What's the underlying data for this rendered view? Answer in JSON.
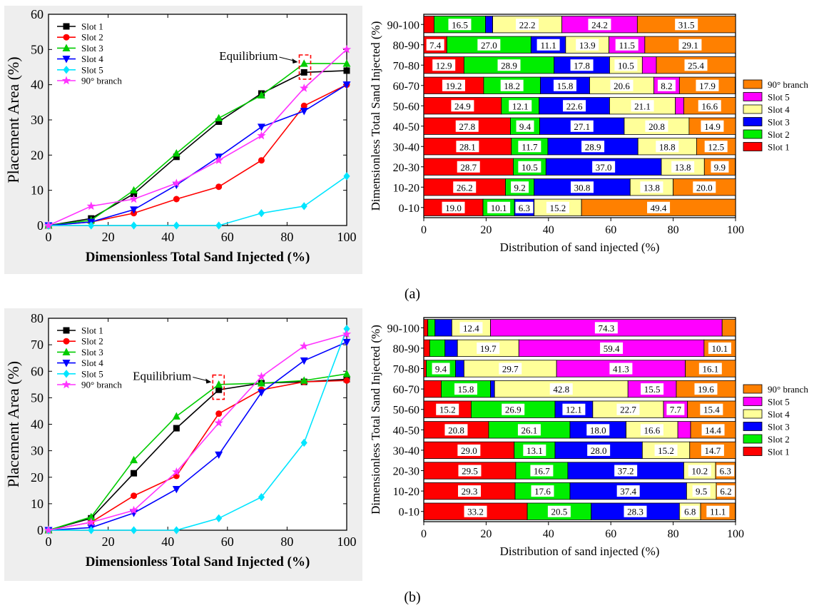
{
  "figure": {
    "panel_a_label": "(a)",
    "panel_b_label": "(b)"
  },
  "chart_data": [
    {
      "id": "a-line",
      "type": "line",
      "xlabel": "Dimensionless Total Sand Injected (%)",
      "ylabel": "Placement Area (%)",
      "xlim": [
        0,
        100
      ],
      "ylim": [
        0,
        60
      ],
      "xticks": [
        0,
        20,
        40,
        60,
        80,
        100
      ],
      "yticks": [
        0,
        10,
        20,
        30,
        40,
        50,
        60
      ],
      "annotation": "Equilibrium",
      "annotation_point": [
        86,
        45
      ],
      "legend_position": "top-left",
      "x": [
        0,
        14.3,
        28.6,
        42.9,
        57.1,
        71.4,
        85.7,
        100
      ],
      "series": [
        {
          "name": "Slot 1",
          "color": "#000000",
          "marker": "square",
          "values": [
            0,
            2,
            9,
            19.5,
            29.5,
            37.5,
            43.5,
            44
          ]
        },
        {
          "name": "Slot 2",
          "color": "#ff0000",
          "marker": "circle",
          "values": [
            0,
            1,
            3.5,
            7.5,
            11,
            18.5,
            34,
            40
          ]
        },
        {
          "name": "Slot 3",
          "color": "#00cc00",
          "marker": "triangle-up",
          "values": [
            0,
            1.5,
            10,
            20.5,
            30.5,
            37,
            46,
            46
          ]
        },
        {
          "name": "Slot 4",
          "color": "#0000ff",
          "marker": "triangle-down",
          "values": [
            0,
            1,
            4.5,
            11.5,
            19.5,
            28,
            32.5,
            40
          ]
        },
        {
          "name": "Slot 5",
          "color": "#00e5ff",
          "marker": "diamond",
          "values": [
            0,
            0,
            0,
            0,
            0,
            3.5,
            5.5,
            14
          ]
        },
        {
          "name": "90° branch",
          "color": "#ff33ff",
          "marker": "star",
          "values": [
            0,
            5.5,
            7.5,
            12,
            18.5,
            25.5,
            39,
            50
          ]
        }
      ]
    },
    {
      "id": "a-bar",
      "type": "bar",
      "orientation": "horizontal-stacked",
      "xlabel": "Distribution of sand injected (%)",
      "ylabel": "Dimensionless Total Sand Injected (%)",
      "xlim": [
        0,
        100
      ],
      "xticks": [
        0,
        20,
        40,
        60,
        80,
        100
      ],
      "legend_position": "right",
      "categories": [
        "0-10",
        "10-20",
        "20-30",
        "30-40",
        "40-50",
        "50-60",
        "60-70",
        "70-80",
        "80-90",
        "90-100"
      ],
      "series": [
        {
          "name": "Slot 1",
          "color": "#ff0000",
          "values": [
            19.0,
            26.2,
            28.7,
            28.1,
            27.8,
            24.9,
            19.2,
            12.9,
            7.4,
            3.3
          ]
        },
        {
          "name": "Slot 2",
          "color": "#00ee00",
          "values": [
            10.1,
            9.2,
            10.5,
            11.7,
            9.4,
            12.1,
            18.2,
            28.9,
            27.0,
            16.5
          ]
        },
        {
          "name": "Slot 3",
          "color": "#0000ff",
          "values": [
            6.3,
            30.8,
            37.0,
            28.9,
            27.1,
            22.6,
            15.8,
            17.8,
            11.1,
            2.3
          ]
        },
        {
          "name": "Slot 4",
          "color": "#ffff99",
          "values": [
            15.2,
            13.8,
            13.8,
            18.8,
            20.8,
            21.1,
            20.6,
            10.5,
            13.9,
            22.2
          ]
        },
        {
          "name": "Slot 5",
          "color": "#ff00ff",
          "values": [
            0,
            0,
            0,
            0,
            0,
            2.7,
            8.2,
            4.5,
            11.5,
            24.2
          ]
        },
        {
          "name": "90° branch",
          "color": "#ff8000",
          "values": [
            49.4,
            20.0,
            9.9,
            12.5,
            14.9,
            16.6,
            17.9,
            25.4,
            29.1,
            31.5
          ]
        }
      ],
      "labels": {
        "Slot 1": [
          "19.0",
          "26.2",
          "28.7",
          "28.1",
          "27.8",
          "24.9",
          "19.2",
          "12.9",
          "7.4",
          ""
        ],
        "Slot 2": [
          "10.1",
          "9.2",
          "10.5",
          "11.7",
          "9.4",
          "12.1",
          "18.2",
          "28.9",
          "27.0",
          "16.5"
        ],
        "Slot 3": [
          "6.3",
          "30.8",
          "37.0",
          "28.9",
          "27.1",
          "22.6",
          "15.8",
          "17.8",
          "11.1",
          ""
        ],
        "Slot 4": [
          "15.2",
          "13.8",
          "13.8",
          "18.8",
          "20.8",
          "21.1",
          "20.6",
          "10.5",
          "13.9",
          "22.2"
        ],
        "Slot 5": [
          "",
          "",
          "",
          "",
          "",
          "",
          "8.2",
          "",
          "11.5",
          "24.2"
        ],
        "90° branch": [
          "49.4",
          "20.0",
          "9.9",
          "12.5",
          "14.9",
          "16.6",
          "17.9",
          "25.4",
          "29.1",
          "31.5"
        ]
      }
    },
    {
      "id": "b-line",
      "type": "line",
      "xlabel": "Dimensionless Total Sand Injected (%)",
      "ylabel": "Placement Area (%)",
      "xlim": [
        0,
        100
      ],
      "ylim": [
        0,
        80
      ],
      "xticks": [
        0,
        20,
        40,
        60,
        80,
        100
      ],
      "yticks": [
        0,
        10,
        20,
        30,
        40,
        50,
        60,
        70,
        80
      ],
      "annotation": "Equilibrium",
      "annotation_point": [
        57,
        54
      ],
      "legend_position": "top-left",
      "x": [
        0,
        14.3,
        28.6,
        42.9,
        57.1,
        71.4,
        85.7,
        100
      ],
      "series": [
        {
          "name": "Slot 1",
          "color": "#000000",
          "marker": "square",
          "values": [
            0,
            4.5,
            21.5,
            38.5,
            53,
            55.5,
            56,
            57
          ]
        },
        {
          "name": "Slot 2",
          "color": "#ff0000",
          "marker": "circle",
          "values": [
            0,
            3,
            13,
            20.5,
            44,
            53,
            56,
            56.5
          ]
        },
        {
          "name": "Slot 3",
          "color": "#00cc00",
          "marker": "triangle-up",
          "values": [
            0,
            5,
            26.5,
            43,
            55,
            55.5,
            56.5,
            59
          ]
        },
        {
          "name": "Slot 4",
          "color": "#0000ff",
          "marker": "triangle-down",
          "values": [
            0,
            1,
            6.5,
            15.5,
            28.5,
            52,
            64,
            71
          ]
        },
        {
          "name": "Slot 5",
          "color": "#00e5ff",
          "marker": "diamond",
          "values": [
            0,
            0,
            0,
            0,
            4.5,
            12.5,
            33,
            76
          ]
        },
        {
          "name": "90° branch",
          "color": "#ff33ff",
          "marker": "star",
          "values": [
            0,
            3,
            7.5,
            22,
            40.5,
            58,
            69.5,
            74
          ]
        }
      ]
    },
    {
      "id": "b-bar",
      "type": "bar",
      "orientation": "horizontal-stacked",
      "xlabel": "Distribution of sand injected (%)",
      "ylabel": "Dimensionless Total Sand Injected (%)",
      "xlim": [
        0,
        100
      ],
      "xticks": [
        0,
        20,
        40,
        60,
        80,
        100
      ],
      "legend_position": "right",
      "categories": [
        "0-10",
        "10-20",
        "20-30",
        "30-40",
        "40-50",
        "50-60",
        "60-70",
        "70-80",
        "80-90",
        "90-100"
      ],
      "series": [
        {
          "name": "Slot 1",
          "color": "#ff0000",
          "values": [
            33.2,
            29.3,
            29.5,
            29.0,
            20.8,
            15.2,
            5.6,
            0.8,
            1.9,
            1.3
          ]
        },
        {
          "name": "Slot 2",
          "color": "#00ee00",
          "values": [
            20.5,
            17.6,
            16.7,
            13.1,
            26.1,
            26.9,
            15.8,
            9.4,
            4.9,
            2.3
          ]
        },
        {
          "name": "Slot 3",
          "color": "#0000ff",
          "values": [
            28.3,
            37.4,
            37.2,
            28.0,
            18.0,
            12.1,
            1.3,
            2.7,
            4.0,
            5.4
          ]
        },
        {
          "name": "Slot 4",
          "color": "#ffff99",
          "values": [
            6.8,
            9.5,
            10.2,
            15.2,
            16.6,
            22.7,
            42.8,
            29.7,
            19.7,
            12.4
          ]
        },
        {
          "name": "Slot 5",
          "color": "#ff00ff",
          "values": [
            0,
            0,
            0,
            0,
            4.1,
            7.7,
            15.5,
            41.3,
            59.4,
            74.3
          ]
        },
        {
          "name": "90° branch",
          "color": "#ff8000",
          "values": [
            11.1,
            6.2,
            6.3,
            14.7,
            14.4,
            15.4,
            19.6,
            16.1,
            10.1,
            4.3
          ]
        }
      ],
      "labels": {
        "Slot 1": [
          "33.2",
          "29.3",
          "29.5",
          "29.0",
          "20.8",
          "15.2",
          "",
          "",
          "",
          ""
        ],
        "Slot 2": [
          "20.5",
          "17.6",
          "16.7",
          "13.1",
          "26.1",
          "26.9",
          "15.8",
          "9.4",
          "",
          ""
        ],
        "Slot 3": [
          "28.3",
          "37.4",
          "37.2",
          "28.0",
          "18.0",
          "12.1",
          "",
          "",
          "",
          ""
        ],
        "Slot 4": [
          "6.8",
          "9.5",
          "10.2",
          "15.2",
          "16.6",
          "22.7",
          "42.8",
          "29.7",
          "19.7",
          "12.4"
        ],
        "Slot 5": [
          "",
          "",
          "",
          "",
          "",
          "7.7",
          "15.5",
          "41.3",
          "59.4",
          "74.3"
        ],
        "90° branch": [
          "11.1",
          "6.2",
          "6.3",
          "14.7",
          "14.4",
          "15.4",
          "19.6",
          "16.1",
          "10.1",
          ""
        ]
      }
    }
  ]
}
